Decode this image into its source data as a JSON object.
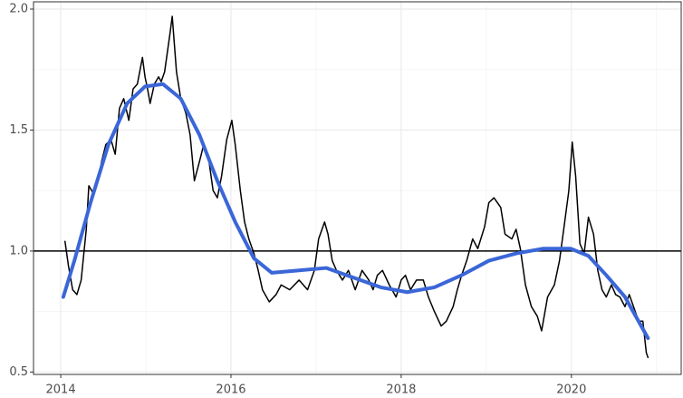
{
  "chart_data": {
    "type": "line",
    "xlim": [
      2013.68,
      2021.29
    ],
    "ylim": [
      0.49,
      2.03
    ],
    "xticks": [
      2014,
      2016,
      2018,
      2020
    ],
    "yticks": [
      0.5,
      {
        "value": 1.0,
        "label": "1.0"
      },
      1.5,
      {
        "value": 2.0,
        "label": "2.0"
      }
    ],
    "xminor": [
      2015,
      2017,
      2019,
      2021
    ],
    "yminor": [
      0.75,
      1.25,
      1.75
    ],
    "grid": true,
    "hlines": [
      1.0
    ],
    "hline_color": "#000000",
    "series": [
      {
        "color": "#000000",
        "x": [
          2014.05,
          2014.09,
          2014.14,
          2014.19,
          2014.24,
          2014.3,
          2014.33,
          2014.38,
          2014.44,
          2014.48,
          2014.53,
          2014.59,
          2014.64,
          2014.69,
          2014.74,
          2014.8,
          2014.85,
          2014.9,
          2014.96,
          2014.99,
          2015.02,
          2015.05,
          2015.1,
          2015.15,
          2015.18,
          2015.22,
          2015.28,
          2015.31,
          2015.36,
          2015.41,
          2015.47,
          2015.52,
          2015.57,
          2015.63,
          2015.68,
          2015.73,
          2015.79,
          2015.84,
          2015.89,
          2015.95,
          2016.01,
          2016.05,
          2016.11,
          2016.16,
          2016.21,
          2016.27,
          2016.32,
          2016.37,
          2016.45,
          2016.53,
          2016.59,
          2016.69,
          2016.8,
          2016.9,
          2016.98,
          2017.03,
          2017.1,
          2017.14,
          2017.19,
          2017.24,
          2017.31,
          2017.38,
          2017.46,
          2017.54,
          2017.62,
          2017.67,
          2017.72,
          2017.78,
          2017.86,
          2017.94,
          2018.0,
          2018.05,
          2018.11,
          2018.18,
          2018.26,
          2018.32,
          2018.39,
          2018.47,
          2018.53,
          2018.61,
          2018.66,
          2018.71,
          2018.77,
          2018.84,
          2018.9,
          2018.98,
          2019.03,
          2019.09,
          2019.17,
          2019.22,
          2019.3,
          2019.35,
          2019.4,
          2019.46,
          2019.53,
          2019.6,
          2019.65,
          2019.72,
          2019.8,
          2019.86,
          2019.91,
          2019.97,
          2020.01,
          2020.05,
          2020.1,
          2020.15,
          2020.2,
          2020.26,
          2020.31,
          2020.36,
          2020.41,
          2020.47,
          2020.52,
          2020.57,
          2020.63,
          2020.68,
          2020.73,
          2020.79,
          2020.84,
          2020.88,
          2020.9
        ],
        "values": [
          1.04,
          0.94,
          0.84,
          0.82,
          0.88,
          1.09,
          1.27,
          1.24,
          1.29,
          1.37,
          1.44,
          1.46,
          1.4,
          1.59,
          1.63,
          1.54,
          1.67,
          1.69,
          1.8,
          1.72,
          1.67,
          1.61,
          1.69,
          1.72,
          1.7,
          1.74,
          1.89,
          1.97,
          1.74,
          1.63,
          1.57,
          1.48,
          1.29,
          1.37,
          1.44,
          1.4,
          1.25,
          1.22,
          1.31,
          1.46,
          1.54,
          1.44,
          1.25,
          1.12,
          1.05,
          0.99,
          0.92,
          0.84,
          0.79,
          0.82,
          0.86,
          0.84,
          0.88,
          0.84,
          0.92,
          1.05,
          1.12,
          1.07,
          0.96,
          0.92,
          0.88,
          0.92,
          0.84,
          0.92,
          0.88,
          0.84,
          0.9,
          0.92,
          0.86,
          0.81,
          0.88,
          0.9,
          0.84,
          0.88,
          0.88,
          0.81,
          0.75,
          0.69,
          0.71,
          0.77,
          0.84,
          0.9,
          0.96,
          1.05,
          1.01,
          1.1,
          1.2,
          1.22,
          1.18,
          1.07,
          1.05,
          1.09,
          1.01,
          0.86,
          0.77,
          0.73,
          0.67,
          0.81,
          0.86,
          0.96,
          1.09,
          1.25,
          1.45,
          1.31,
          1.03,
          0.99,
          1.14,
          1.07,
          0.92,
          0.84,
          0.81,
          0.86,
          0.82,
          0.81,
          0.77,
          0.82,
          0.77,
          0.71,
          0.71,
          0.58,
          0.56
        ]
      },
      {
        "color": "#3a66d8",
        "x": [
          2014.03,
          2014.16,
          2014.35,
          2014.56,
          2014.78,
          2014.99,
          2015.2,
          2015.41,
          2015.63,
          2015.84,
          2016.05,
          2016.27,
          2016.48,
          2016.8,
          2017.12,
          2017.44,
          2017.76,
          2018.07,
          2018.39,
          2018.71,
          2019.03,
          2019.35,
          2019.67,
          2019.99,
          2020.2,
          2020.41,
          2020.63,
          2020.9
        ],
        "values": [
          0.81,
          0.96,
          1.2,
          1.44,
          1.61,
          1.68,
          1.69,
          1.63,
          1.48,
          1.29,
          1.12,
          0.97,
          0.91,
          0.92,
          0.93,
          0.89,
          0.85,
          0.83,
          0.85,
          0.9,
          0.96,
          0.99,
          1.01,
          1.01,
          0.98,
          0.9,
          0.81,
          0.64
        ]
      }
    ]
  }
}
